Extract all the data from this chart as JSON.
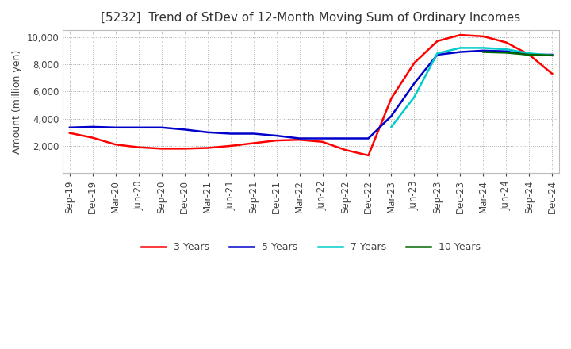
{
  "title": "[5232]  Trend of StDev of 12-Month Moving Sum of Ordinary Incomes",
  "ylabel": "Amount (million yen)",
  "ylim": [
    0,
    10500
  ],
  "yticks": [
    2000,
    4000,
    6000,
    8000,
    10000
  ],
  "colors": {
    "3 Years": "#ff0000",
    "5 Years": "#0000cc",
    "7 Years": "#00cccc",
    "10 Years": "#006600"
  },
  "x_labels": [
    "Sep-19",
    "Dec-19",
    "Mar-20",
    "Jun-20",
    "Sep-20",
    "Dec-20",
    "Mar-21",
    "Jun-21",
    "Sep-21",
    "Dec-21",
    "Mar-22",
    "Jun-22",
    "Sep-22",
    "Dec-22",
    "Mar-23",
    "Jun-23",
    "Sep-23",
    "Dec-23",
    "Mar-24",
    "Jun-24",
    "Sep-24",
    "Dec-24"
  ],
  "series": {
    "3 Years": [
      2950,
      2600,
      2100,
      1900,
      1800,
      1800,
      1850,
      2000,
      2200,
      2400,
      2450,
      2300,
      1700,
      1300,
      5500,
      8100,
      9700,
      10150,
      10050,
      9600,
      8700,
      7300
    ],
    "5 Years": [
      3350,
      3400,
      3350,
      3350,
      3350,
      3200,
      3000,
      2900,
      2900,
      2750,
      2550,
      2550,
      2550,
      2550,
      4200,
      6600,
      8700,
      8900,
      9000,
      8950,
      8700,
      8700
    ],
    "7 Years": [
      null,
      null,
      null,
      null,
      null,
      null,
      null,
      null,
      null,
      null,
      null,
      null,
      null,
      null,
      3400,
      5600,
      8800,
      9200,
      9200,
      9100,
      8800,
      8650
    ],
    "10 Years": [
      null,
      null,
      null,
      null,
      null,
      null,
      null,
      null,
      null,
      null,
      null,
      null,
      null,
      null,
      null,
      null,
      null,
      null,
      8900,
      8850,
      8700,
      8650
    ]
  },
  "background_color": "#ffffff",
  "grid_color": "#aaaaaa",
  "title_fontsize": 11,
  "axis_fontsize": 9,
  "tick_fontsize": 8.5
}
